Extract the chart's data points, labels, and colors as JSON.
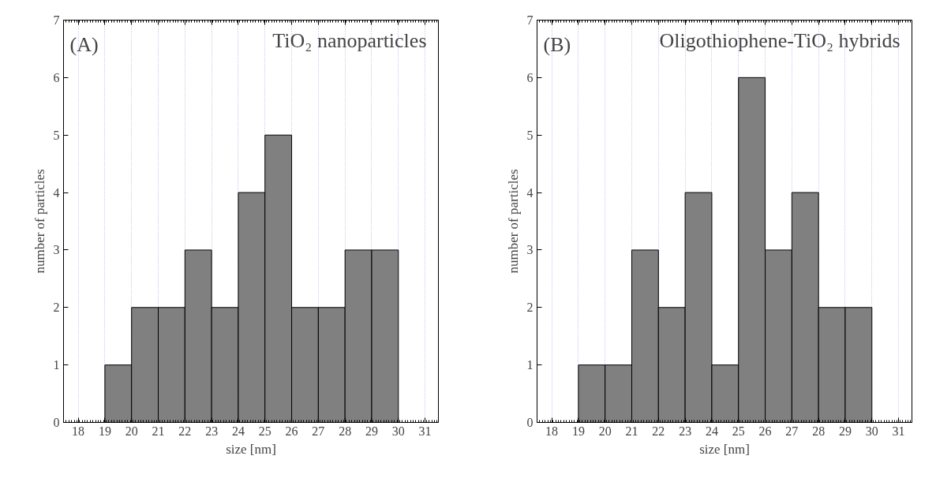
{
  "chart_data": [
    {
      "type": "histogram",
      "title": "TiO₂ nanoparticles",
      "annotations": [
        "(A)"
      ],
      "xlabel": "size [nm]",
      "ylabel": "number of particles",
      "bins": [
        19,
        20,
        21,
        22,
        23,
        24,
        25,
        26,
        27,
        28,
        29,
        30
      ],
      "values": [
        1,
        2,
        2,
        3,
        2,
        4,
        5,
        2,
        2,
        3,
        3
      ],
      "color": "#808080",
      "xlim": [
        17.45,
        31.5
      ],
      "ylim": [
        0,
        7
      ],
      "xticks": [
        18,
        19,
        20,
        21,
        22,
        23,
        24,
        25,
        26,
        27,
        28,
        29,
        30,
        31
      ],
      "yticks": [
        0,
        1,
        2,
        3,
        4,
        5,
        6,
        7
      ],
      "grid": "x"
    },
    {
      "type": "histogram",
      "title": "Oligothiophene-TiO₂ hybrids",
      "annotations": [
        "(B)"
      ],
      "xlabel": "size [nm]",
      "ylabel": "number of particles",
      "bins": [
        19,
        20,
        21,
        22,
        23,
        24,
        25,
        26,
        27,
        28,
        29,
        30
      ],
      "values": [
        1,
        1,
        3,
        2,
        4,
        1,
        6,
        3,
        4,
        2,
        2
      ],
      "color": "#808080",
      "xlim": [
        17.45,
        31.5
      ],
      "ylim": [
        0,
        7
      ],
      "xticks": [
        18,
        19,
        20,
        21,
        22,
        23,
        24,
        25,
        26,
        27,
        28,
        29,
        30,
        31
      ],
      "yticks": [
        0,
        1,
        2,
        3,
        4,
        5,
        6,
        7
      ],
      "grid": "x"
    }
  ]
}
